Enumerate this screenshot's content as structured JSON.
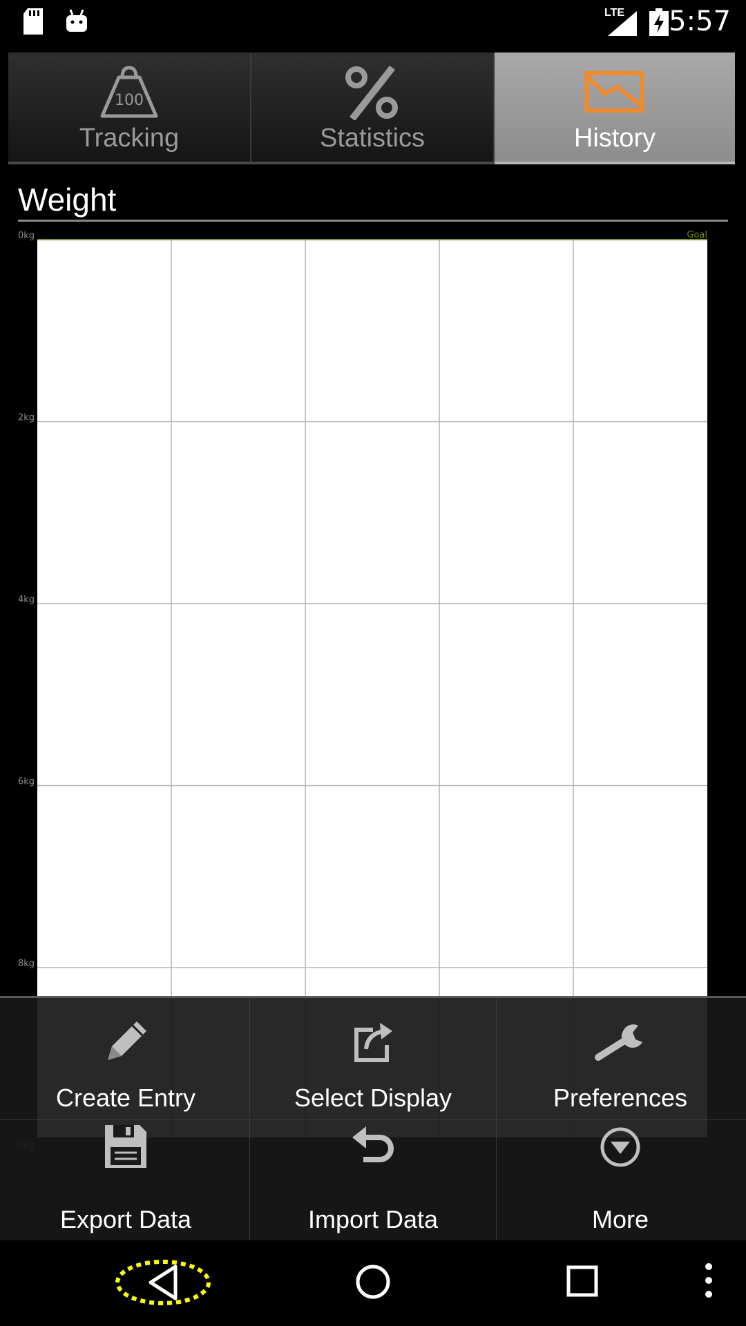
{
  "status_bar": {
    "time": "5:57",
    "network": "LTE",
    "left_icons": [
      "sd-card-icon",
      "android-icon"
    ],
    "right_icons": [
      "signal-icon",
      "battery-charging-icon"
    ]
  },
  "tabs": [
    {
      "label": "Tracking",
      "icon": "weight-scale-icon",
      "active": false
    },
    {
      "label": "Statistics",
      "icon": "percent-icon",
      "active": false
    },
    {
      "label": "History",
      "icon": "history-chart-icon",
      "active": true
    }
  ],
  "section": {
    "title": "Weight"
  },
  "chart_data": {
    "type": "line",
    "y_tick_labels": [
      "0kg",
      "2kg",
      "4kg",
      "6kg",
      "8kg",
      "0kg"
    ],
    "goal_label": "Goal",
    "series": [],
    "grid": true,
    "colors": {
      "background": "#ffffff",
      "grid": "#b4b4b4",
      "goal": "#7a9a2a"
    }
  },
  "menu": {
    "items": [
      {
        "label": "Create Entry",
        "icon": "pencil-icon"
      },
      {
        "label": "Select Display",
        "icon": "share-box-icon"
      },
      {
        "label": "Preferences",
        "icon": "wrench-icon"
      },
      {
        "label": "Export Data",
        "icon": "floppy-disk-icon"
      },
      {
        "label": "Import Data",
        "icon": "undo-arrow-icon"
      },
      {
        "label": "More",
        "icon": "chevron-circle-down-icon"
      }
    ]
  },
  "nav_bar": {
    "buttons": [
      "back-icon",
      "home-icon",
      "recents-icon",
      "overflow-menu-icon"
    ],
    "highlight_color": "#ffff00"
  },
  "colors": {
    "accent": "#f08a2c",
    "active_tab": "#9a9a9a"
  }
}
